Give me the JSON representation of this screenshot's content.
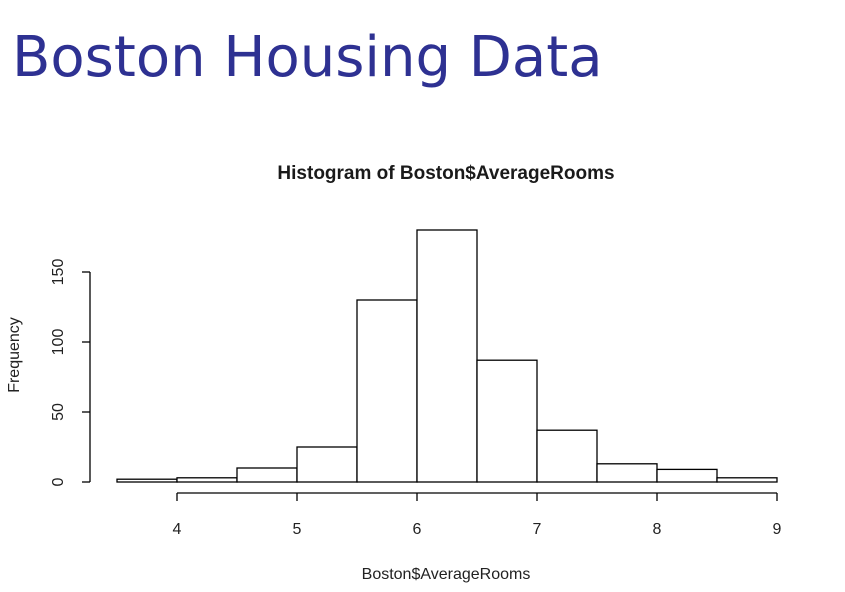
{
  "slide": {
    "title": "Boston Housing Data"
  },
  "chart_data": {
    "type": "bar",
    "title": "Histogram of Boston$AverageRooms",
    "xlabel": "Boston$AverageRooms",
    "ylabel": "Frequency",
    "bin_edges": [
      3.5,
      4,
      4.5,
      5,
      5.5,
      6,
      6.5,
      7,
      7.5,
      8,
      8.5,
      9
    ],
    "values": [
      2,
      3,
      10,
      25,
      130,
      180,
      87,
      37,
      13,
      9,
      3
    ],
    "xticks": [
      4,
      5,
      6,
      7,
      8,
      9
    ],
    "yticks": [
      0,
      50,
      100,
      150
    ],
    "xlim": [
      3.5,
      9
    ],
    "ylim": [
      0,
      180
    ],
    "grid": false,
    "colors": {
      "bar_fill": "#ffffff",
      "bar_stroke": "#000000",
      "title_color": "#2e3192"
    }
  }
}
